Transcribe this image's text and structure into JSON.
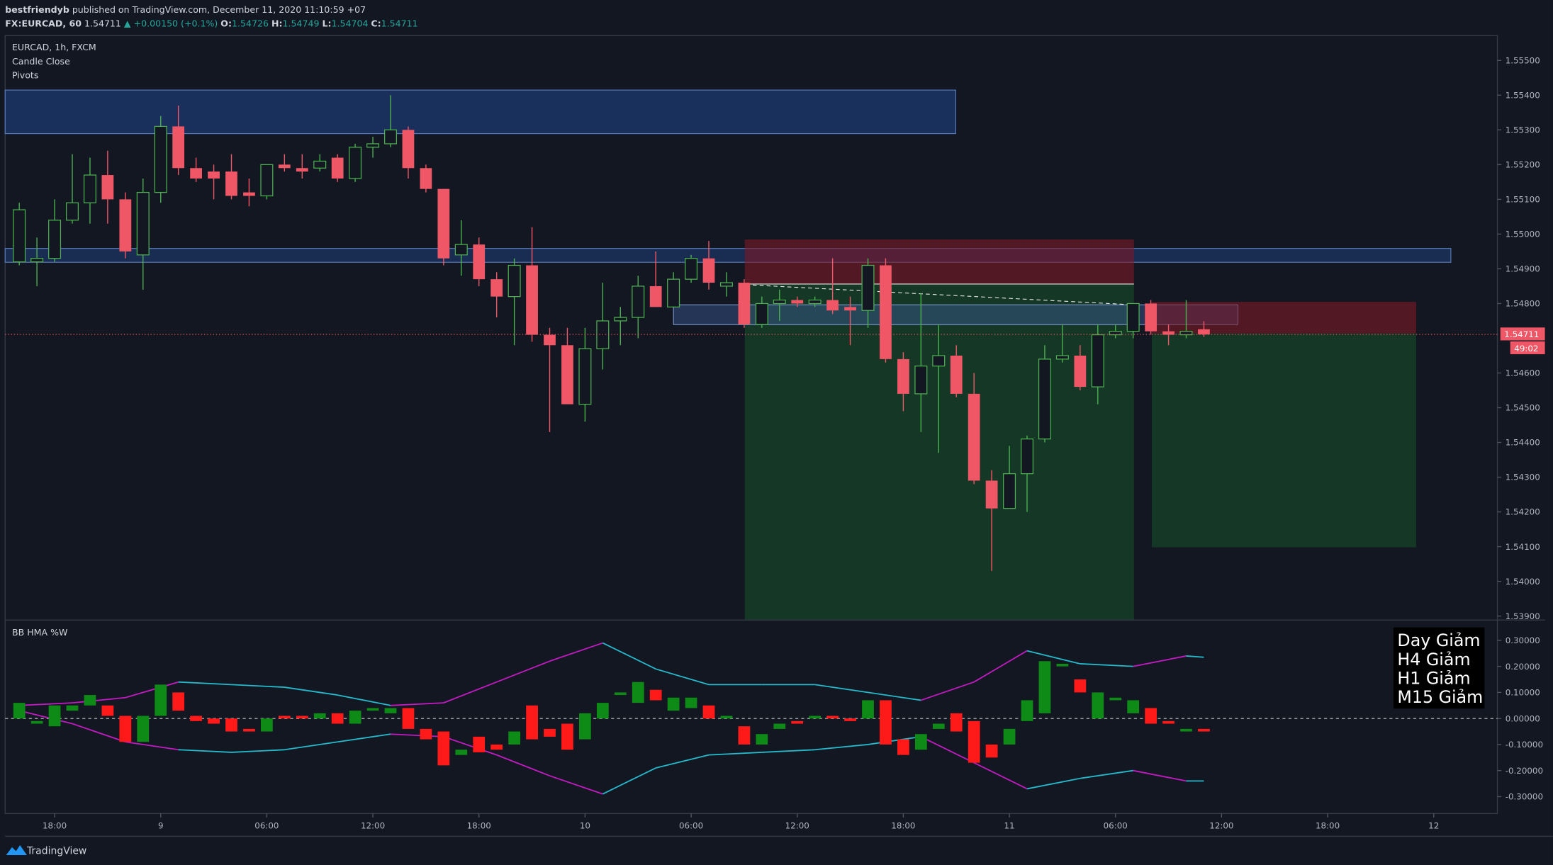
{
  "header": {
    "publisher": "bestfriendyb",
    "published": "published on TradingView.com, December 11, 2020 11:10:59 +07",
    "symbol": "FX:EURCAD, 60",
    "last": "1.54711",
    "change": "▲ +0.00150 (+0.1%)",
    "o_label": "O:",
    "o": "1.54726",
    "h_label": "H:",
    "h": "1.54749",
    "l_label": "L:",
    "l": "1.54704",
    "c_label": "C:",
    "c": "1.54711"
  },
  "legend": {
    "title": "EURCAD, 1h, FXCM",
    "items": [
      "Candle Close",
      "Pivots"
    ]
  },
  "signals": [
    "Day Giảm",
    "H4 Giảm",
    "H1 Giảm",
    "M15 Giảm"
  ],
  "footer": "TradingView",
  "chart_data": [
    {
      "type": "candlestick",
      "up_color": "#4caf50",
      "down_color": "#f05766",
      "x": [
        16,
        17,
        18,
        19,
        20,
        21,
        22,
        23,
        24,
        25,
        26,
        27,
        28,
        29,
        30,
        31,
        32,
        33,
        34,
        35,
        36,
        37,
        38,
        39,
        40,
        41,
        42,
        43,
        44,
        45,
        46,
        47,
        48,
        49,
        50,
        51,
        52,
        53,
        54,
        55,
        56,
        57,
        58,
        59,
        60,
        61,
        62,
        63,
        64,
        65,
        66,
        67,
        68,
        69,
        70,
        71,
        72,
        73,
        74,
        75,
        76,
        77,
        78,
        79,
        80,
        81,
        82,
        83
      ],
      "open": [
        1.5492,
        1.5492,
        1.5493,
        1.5504,
        1.5509,
        1.5517,
        1.551,
        1.5494,
        1.5512,
        1.5531,
        1.5519,
        1.5518,
        1.5518,
        1.5512,
        1.5511,
        1.552,
        1.5519,
        1.5519,
        1.5522,
        1.5516,
        1.5525,
        1.5526,
        1.553,
        1.5519,
        1.5513,
        1.5494,
        1.5497,
        1.5487,
        1.5482,
        1.5491,
        1.5471,
        1.5468,
        1.5451,
        1.5467,
        1.5475,
        1.5476,
        1.5485,
        1.5479,
        1.5487,
        1.5493,
        1.5485,
        1.5486,
        1.5474,
        1.548,
        1.5481,
        1.548,
        1.5481,
        1.5479,
        1.5478,
        1.5491,
        1.5464,
        1.5454,
        1.5462,
        1.5465,
        1.5454,
        1.5429,
        1.5421,
        1.5431,
        1.5441,
        1.5464,
        1.5465,
        1.5456,
        1.5471,
        1.5472,
        1.548,
        1.5472,
        1.5471,
        1.54726
      ],
      "high": [
        1.5509,
        1.5499,
        1.551,
        1.5523,
        1.5522,
        1.5524,
        1.5512,
        1.5516,
        1.5534,
        1.5537,
        1.5522,
        1.552,
        1.5523,
        1.5516,
        1.552,
        1.5523,
        1.5523,
        1.5523,
        1.5523,
        1.5526,
        1.5528,
        1.554,
        1.5531,
        1.552,
        1.5513,
        1.5504,
        1.5499,
        1.5489,
        1.5493,
        1.5502,
        1.5473,
        1.5473,
        1.5473,
        1.5486,
        1.5479,
        1.5488,
        1.5495,
        1.5489,
        1.5494,
        1.5498,
        1.5489,
        1.5487,
        1.5482,
        1.5484,
        1.5482,
        1.5482,
        1.5493,
        1.5482,
        1.5493,
        1.5493,
        1.5466,
        1.5483,
        1.5474,
        1.5468,
        1.546,
        1.5432,
        1.5439,
        1.5442,
        1.5468,
        1.5474,
        1.5468,
        1.5474,
        1.5474,
        1.548,
        1.5481,
        1.5474,
        1.5481,
        1.54749
      ],
      "low": [
        1.5491,
        1.5485,
        1.5492,
        1.5503,
        1.5503,
        1.5503,
        1.5493,
        1.5484,
        1.5509,
        1.5517,
        1.5515,
        1.551,
        1.551,
        1.5508,
        1.551,
        1.5518,
        1.5516,
        1.5518,
        1.5515,
        1.5515,
        1.5522,
        1.5525,
        1.5516,
        1.5512,
        1.5491,
        1.5488,
        1.5485,
        1.5476,
        1.5468,
        1.5469,
        1.5443,
        1.5451,
        1.5446,
        1.5461,
        1.5468,
        1.547,
        1.5479,
        1.5479,
        1.5486,
        1.5484,
        1.5482,
        1.5473,
        1.5473,
        1.5475,
        1.5479,
        1.5479,
        1.5477,
        1.5468,
        1.5473,
        1.5463,
        1.5449,
        1.5443,
        1.5437,
        1.5453,
        1.5428,
        1.5403,
        1.5421,
        1.542,
        1.544,
        1.5463,
        1.5455,
        1.5451,
        1.547,
        1.547,
        1.5471,
        1.5468,
        1.547,
        1.54704
      ],
      "close": [
        1.5507,
        1.5493,
        1.5504,
        1.5509,
        1.5517,
        1.551,
        1.5495,
        1.5512,
        1.5531,
        1.5519,
        1.5516,
        1.5516,
        1.5511,
        1.5511,
        1.552,
        1.5519,
        1.5518,
        1.5521,
        1.5516,
        1.5525,
        1.5526,
        1.553,
        1.5519,
        1.5513,
        1.5493,
        1.5497,
        1.5487,
        1.5482,
        1.5491,
        1.5471,
        1.5468,
        1.5451,
        1.5467,
        1.5475,
        1.5476,
        1.5485,
        1.5479,
        1.5487,
        1.5493,
        1.5486,
        1.5486,
        1.5474,
        1.548,
        1.5481,
        1.548,
        1.5481,
        1.5478,
        1.5478,
        1.5491,
        1.5464,
        1.5454,
        1.5462,
        1.5465,
        1.5454,
        1.5429,
        1.5421,
        1.5431,
        1.5441,
        1.5464,
        1.5465,
        1.5456,
        1.5471,
        1.5472,
        1.548,
        1.5472,
        1.5471,
        1.5472,
        1.54711
      ],
      "last": 1.54711,
      "last_color": "#f05766",
      "countdown": "49:02",
      "xlim": [
        15.2,
        99.6
      ],
      "xticks": [
        {
          "value": 18,
          "label": "18:00"
        },
        {
          "value": 24,
          "label": "9"
        },
        {
          "value": 30,
          "label": "06:00"
        },
        {
          "value": 36,
          "label": "12:00"
        },
        {
          "value": 42,
          "label": "18:00"
        },
        {
          "value": 48,
          "label": "10"
        },
        {
          "value": 54,
          "label": "06:00"
        },
        {
          "value": 60,
          "label": "12:00"
        },
        {
          "value": 66,
          "label": "18:00"
        },
        {
          "value": 72,
          "label": "11"
        },
        {
          "value": 78,
          "label": "06:00"
        },
        {
          "value": 84,
          "label": "12:00"
        },
        {
          "value": 90,
          "label": "18:00"
        },
        {
          "value": 96,
          "label": "12"
        }
      ],
      "ylim": [
        1.5389,
        1.5556
      ],
      "yticks": [
        {
          "value": 1.555,
          "label": "1.55500"
        },
        {
          "value": 1.554,
          "label": "1.55400"
        },
        {
          "value": 1.553,
          "label": "1.55300"
        },
        {
          "value": 1.552,
          "label": "1.55200"
        },
        {
          "value": 1.551,
          "label": "1.55100"
        },
        {
          "value": 1.55,
          "label": "1.55000"
        },
        {
          "value": 1.549,
          "label": "1.54900"
        },
        {
          "value": 1.548,
          "label": "1.54800"
        },
        {
          "value": 1.546,
          "label": "1.54600"
        },
        {
          "value": 1.545,
          "label": "1.54500"
        },
        {
          "value": 1.544,
          "label": "1.54400"
        },
        {
          "value": 1.543,
          "label": "1.54300"
        },
        {
          "value": 1.542,
          "label": "1.54200"
        },
        {
          "value": 1.541,
          "label": "1.54100"
        },
        {
          "value": 1.54,
          "label": "1.54000"
        },
        {
          "value": 1.539,
          "label": "1.53900"
        }
      ]
    },
    {
      "type": "candlestick",
      "title": "BB HMA %W",
      "up_color": "#0e8a16",
      "down_color": "#ff1a1a",
      "x": [
        16,
        17,
        18,
        19,
        20,
        21,
        22,
        23,
        24,
        25,
        26,
        27,
        28,
        29,
        30,
        31,
        32,
        33,
        34,
        35,
        36,
        37,
        38,
        39,
        40,
        41,
        42,
        43,
        44,
        45,
        46,
        47,
        48,
        49,
        50,
        51,
        52,
        53,
        54,
        55,
        56,
        57,
        58,
        59,
        60,
        61,
        62,
        63,
        64,
        65,
        66,
        67,
        68,
        69,
        70,
        71,
        72,
        73,
        74,
        75,
        76,
        77,
        78,
        79,
        80,
        81,
        82,
        83
      ],
      "open": [
        0,
        -0.02,
        -0.03,
        0.03,
        0.05,
        0.05,
        0.01,
        -0.09,
        0.01,
        0.1,
        0.01,
        0,
        0,
        -0.04,
        -0.05,
        0.01,
        0.01,
        0,
        0.02,
        -0.02,
        0.03,
        0.02,
        0.04,
        -0.04,
        -0.05,
        -0.14,
        -0.07,
        -0.1,
        -0.1,
        0.05,
        -0.04,
        -0.02,
        -0.08,
        0,
        0.09,
        0.06,
        0.11,
        0.03,
        0.04,
        0.05,
        0,
        -0.03,
        -0.1,
        -0.04,
        -0.01,
        0,
        0.01,
        0,
        0,
        0.07,
        -0.08,
        -0.12,
        -0.04,
        0.02,
        -0.01,
        -0.1,
        -0.1,
        -0.01,
        0.02,
        0.2,
        0.15,
        0,
        0.07,
        0.02,
        0.04,
        -0.01,
        -0.05,
        -0.04
      ],
      "close": [
        0.06,
        -0.01,
        0.05,
        0.05,
        0.09,
        0.01,
        -0.09,
        0.01,
        0.13,
        0.03,
        -0.01,
        -0.02,
        -0.05,
        -0.05,
        0,
        0,
        0,
        0.02,
        -0.02,
        0.03,
        0.04,
        0.04,
        -0.04,
        -0.08,
        -0.18,
        -0.12,
        -0.13,
        -0.12,
        -0.05,
        -0.08,
        -0.07,
        -0.12,
        0.02,
        0.06,
        0.1,
        0.14,
        0.07,
        0.08,
        0.08,
        0,
        0.01,
        -0.1,
        -0.06,
        -0.02,
        -0.02,
        0.01,
        0,
        -0.01,
        0.07,
        -0.1,
        -0.14,
        -0.06,
        -0.02,
        -0.05,
        -0.17,
        -0.15,
        -0.04,
        0.07,
        0.22,
        0.21,
        0.1,
        0.1,
        0.08,
        0.07,
        -0.02,
        -0.02,
        -0.04,
        -0.05
      ],
      "band_colors": {
        "expanding": "#c21bc2",
        "contracting": "#26b9cc"
      },
      "series": [
        {
          "x": [
            16,
            19,
            22,
            25,
            28,
            31,
            34,
            37,
            40,
            43,
            46,
            49,
            52,
            55,
            58,
            61,
            64,
            67,
            70,
            73,
            76,
            79,
            82,
            83
          ],
          "values": [
            0.05,
            0.06,
            0.08,
            0.14,
            0.13,
            0.12,
            0.09,
            0.05,
            0.06,
            0.14,
            0.22,
            0.29,
            0.19,
            0.13,
            0.13,
            0.13,
            0.1,
            0.07,
            0.14,
            0.26,
            0.21,
            0.2,
            0.24,
            0.235
          ]
        },
        {
          "x": [
            16,
            19,
            22,
            25,
            28,
            31,
            34,
            37,
            40,
            43,
            46,
            49,
            52,
            55,
            58,
            61,
            64,
            67,
            70,
            73,
            76,
            79,
            82,
            83
          ],
          "values": [
            0.03,
            -0.02,
            -0.09,
            -0.12,
            -0.13,
            -0.12,
            -0.09,
            -0.06,
            -0.07,
            -0.14,
            -0.22,
            -0.29,
            -0.19,
            -0.14,
            -0.13,
            -0.12,
            -0.1,
            -0.07,
            -0.17,
            -0.27,
            -0.23,
            -0.2,
            -0.24,
            -0.24
          ]
        }
      ],
      "xlim": [
        15.2,
        99.6
      ],
      "ylim": [
        -0.365,
        0.376
      ],
      "yticks": [
        {
          "value": 0.3,
          "label": "0.30000"
        },
        {
          "value": 0.2,
          "label": "0.20000"
        },
        {
          "value": 0.1,
          "label": "0.10000"
        },
        {
          "value": 0,
          "label": "0.00000"
        },
        {
          "value": -0.1,
          "label": "-0.10000"
        },
        {
          "value": -0.2,
          "label": "-0.20000"
        },
        {
          "value": -0.3,
          "label": "-0.30000"
        }
      ]
    }
  ]
}
